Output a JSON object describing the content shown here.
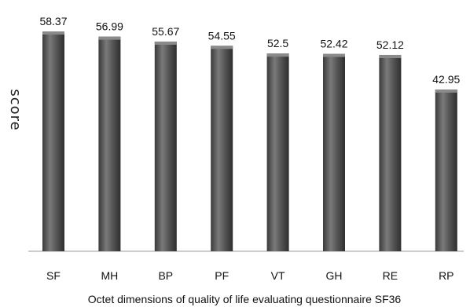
{
  "chart_data": {
    "type": "bar",
    "title": "",
    "xlabel": "Octet dimensions of quality of life evaluating questionnaire SF36",
    "ylabel": "score",
    "categories": [
      "SF",
      "MH",
      "BP",
      "PF",
      "VT",
      "GH",
      "RE",
      "RP"
    ],
    "values": [
      58.37,
      56.99,
      55.67,
      54.55,
      52.5,
      52.42,
      52.12,
      42.95
    ],
    "value_labels": [
      "58.37",
      "56.99",
      "55.67",
      "54.55",
      "52.5",
      "52.42",
      "52.12",
      "42.95"
    ],
    "ylim": [
      0,
      58.37
    ],
    "grid": false,
    "legend": "none",
    "bar_color": "#555555"
  }
}
